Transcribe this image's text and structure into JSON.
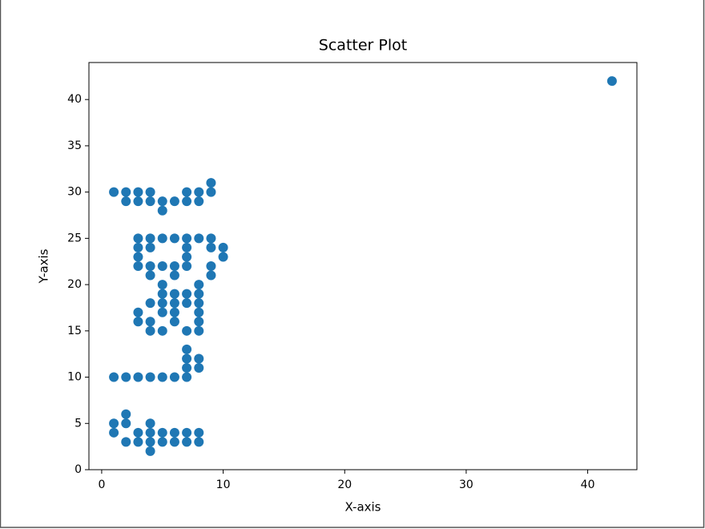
{
  "chart_data": {
    "type": "scatter",
    "title": "Scatter Plot",
    "x_label": "X-axis",
    "y_label": "Y-axis",
    "color": "#1f77b4",
    "x": [
      9,
      1,
      2,
      3,
      4,
      7,
      8,
      9,
      2,
      3,
      4,
      5,
      6,
      7,
      8,
      5,
      3,
      4,
      5,
      6,
      7,
      8,
      9,
      3,
      4,
      7,
      9,
      10,
      3,
      7,
      10,
      3,
      4,
      5,
      6,
      7,
      9,
      4,
      6,
      9,
      5,
      8,
      5,
      6,
      7,
      8,
      4,
      5,
      6,
      7,
      8,
      3,
      5,
      6,
      8,
      3,
      4,
      6,
      8,
      4,
      5,
      7,
      8,
      7,
      7,
      8,
      7,
      8,
      1,
      2,
      3,
      4,
      5,
      6,
      7,
      2,
      1,
      2,
      4,
      1,
      3,
      4,
      5,
      6,
      7,
      8,
      2,
      3,
      4,
      5,
      6,
      7,
      8,
      4,
      42
    ],
    "y": [
      31,
      30,
      30,
      30,
      30,
      30,
      30,
      30,
      29,
      29,
      29,
      29,
      29,
      29,
      29,
      28,
      25,
      25,
      25,
      25,
      25,
      25,
      25,
      24,
      24,
      24,
      24,
      24,
      23,
      23,
      23,
      22,
      22,
      22,
      22,
      22,
      22,
      21,
      21,
      21,
      20,
      20,
      19,
      19,
      19,
      19,
      18,
      18,
      18,
      18,
      18,
      17,
      17,
      17,
      17,
      16,
      16,
      16,
      16,
      15,
      15,
      15,
      15,
      13,
      12,
      12,
      11,
      11,
      10,
      10,
      10,
      10,
      10,
      10,
      10,
      6,
      5,
      5,
      5,
      4,
      4,
      4,
      4,
      4,
      4,
      4,
      3,
      3,
      3,
      3,
      3,
      3,
      3,
      2,
      42
    ],
    "xlim": [
      -1.05,
      44.05
    ],
    "ylim": [
      0,
      44
    ],
    "xticks": [
      0,
      10,
      20,
      30,
      40
    ],
    "yticks": [
      0,
      5,
      10,
      15,
      20,
      25,
      30,
      35,
      40
    ]
  }
}
